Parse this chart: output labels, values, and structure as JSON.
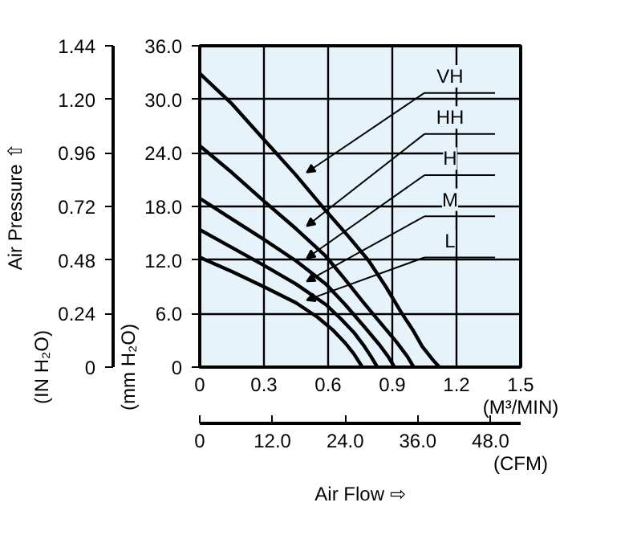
{
  "chart_data": {
    "type": "line",
    "xlabel": "(M³/MIN)",
    "x2label": "(CFM)",
    "ylabel": "(mm H₂O)",
    "y2label": "(IN H₂O)",
    "annotations": [
      "Air Pressure ⇧",
      "Air Flow ⇨"
    ],
    "xlim": [
      0,
      1.5
    ],
    "xticks": [
      0,
      0.3,
      0.6,
      0.9,
      1.2,
      1.5
    ],
    "ylim": [
      0,
      36
    ],
    "yticks": [
      0,
      {
        "value": 6,
        "label": "6.0"
      },
      {
        "value": 12,
        "label": "12.0"
      },
      {
        "value": 18,
        "label": "18.0"
      },
      {
        "value": 24,
        "label": "24.0"
      },
      {
        "value": 30,
        "label": "30.0"
      },
      {
        "value": 36,
        "label": "36.0"
      }
    ],
    "y2lim": [
      0,
      1.44
    ],
    "y2ticks": [
      0,
      0.24,
      0.48,
      0.72,
      0.96,
      {
        "value": 1.2,
        "label": "1.20"
      },
      1.44
    ],
    "x2lim": [
      0,
      52.97
    ],
    "x2ticks": [
      0,
      {
        "value": 12,
        "label": "12.0"
      },
      {
        "value": 24,
        "label": "24.0"
      },
      {
        "value": 36,
        "label": "36.0"
      },
      {
        "value": 48,
        "label": "48.0"
      }
    ],
    "grid": true,
    "marker": "none",
    "line_style": "solid",
    "legend": "top right",
    "series": [
      {
        "name": "VH",
        "color": "#000000",
        "x": [
          0,
          0.15,
          0.3,
          0.45,
          0.59,
          0.7,
          0.79,
          0.87,
          0.94,
          1.0,
          1.04,
          1.09,
          1.12
        ],
        "values": [
          32.9,
          29.5,
          25.5,
          21.5,
          17.5,
          14.5,
          11.9,
          9,
          6.2,
          4,
          2.3,
          0.8,
          0
        ]
      },
      {
        "name": "HH",
        "color": "#000000",
        "x": [
          0,
          0.15,
          0.3,
          0.45,
          0.59,
          0.68,
          0.77,
          0.85,
          0.92,
          0.97,
          1.0
        ],
        "values": [
          24.8,
          21.8,
          18.6,
          15.5,
          12.4,
          9.8,
          7.1,
          4.8,
          2.8,
          1.2,
          0
        ]
      },
      {
        "name": "H",
        "color": "#000000",
        "x": [
          0,
          0.15,
          0.3,
          0.45,
          0.59,
          0.68,
          0.77,
          0.84,
          0.88,
          0.91
        ],
        "values": [
          18.9,
          16.6,
          14.3,
          11.9,
          9.3,
          7,
          4.5,
          2.5,
          1.2,
          0
        ]
      },
      {
        "name": "M",
        "color": "#000000",
        "x": [
          0,
          0.15,
          0.3,
          0.45,
          0.59,
          0.66,
          0.72,
          0.77,
          0.8,
          0.83
        ],
        "values": [
          15.4,
          13.4,
          11.4,
          9.3,
          7.0,
          5.4,
          3.9,
          2.3,
          1.2,
          0
        ]
      },
      {
        "name": "L",
        "color": "#000000",
        "x": [
          0,
          0.15,
          0.3,
          0.45,
          0.55,
          0.62,
          0.68,
          0.72,
          0.76
        ],
        "values": [
          12.3,
          10.7,
          9,
          7.2,
          5.6,
          4.2,
          2.7,
          1.5,
          0
        ]
      }
    ]
  }
}
